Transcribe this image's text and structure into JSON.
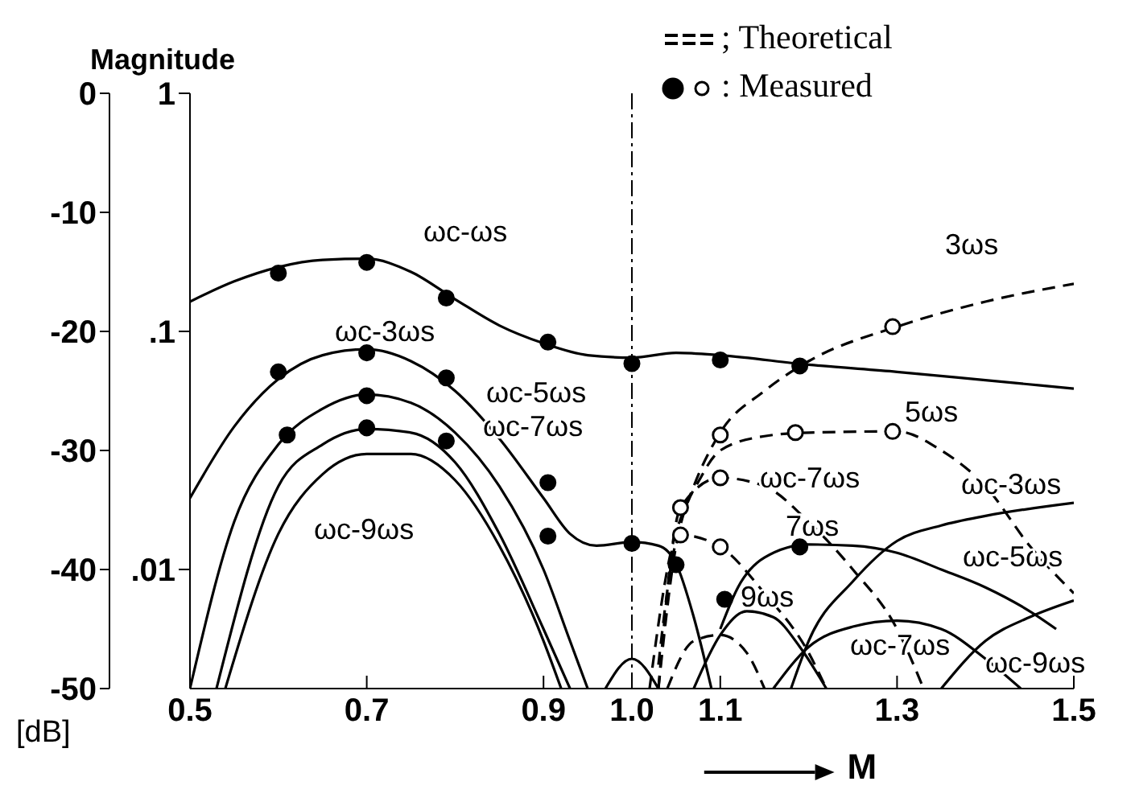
{
  "chart_data": {
    "type": "line",
    "xlabel": "M",
    "ylabel": "[dB]",
    "y2label": "Magnitude",
    "xlim": [
      0.5,
      1.5
    ],
    "xticks": [
      0.5,
      0.7,
      0.9,
      {
        "value": 1,
        "label": "1.0"
      },
      1.1,
      1.3,
      1.5
    ],
    "ylim": [
      -50,
      0
    ],
    "yticks": [
      0,
      -10,
      -20,
      -30,
      -40,
      -50
    ],
    "log": "y2",
    "y2lim": [
      0.00316,
      1
    ],
    "y2ticks": [
      1,
      {
        "value": 0.1,
        "label": ".1"
      },
      {
        "value": 0.01,
        "label": ".01"
      }
    ],
    "grid": false,
    "series": [
      {
        "type": "line",
        "color": "#000000",
        "line_style": "solid",
        "x": [
          0.5,
          0.55,
          0.6,
          0.65,
          0.7,
          0.75,
          0.8,
          0.85,
          0.9,
          0.95,
          1.0,
          1.05,
          1.1,
          1.2,
          1.3,
          1.4,
          1.5
        ],
        "values": [
          -17.5,
          -15.8,
          -14.6,
          -14,
          -13.9,
          -15,
          -17.3,
          -19.5,
          -21,
          -22,
          -22.2,
          -21.8,
          -22,
          -22.8,
          -23.4,
          -24.1,
          -24.8
        ]
      },
      {
        "type": "line",
        "color": "#000000",
        "line_style": "solid",
        "x": [
          0.5,
          0.55,
          0.6,
          0.65,
          0.7,
          0.75,
          0.8,
          0.85,
          0.9,
          0.93,
          0.96,
          1.0,
          1.03,
          1.05,
          1.07,
          1.09
        ],
        "values": [
          -34,
          -28,
          -24,
          -22,
          -21.5,
          -22.5,
          -25,
          -29,
          -34,
          -37,
          -38,
          -37.7,
          -38,
          -39.5,
          -44,
          -50
        ]
      },
      {
        "type": "line",
        "color": "#000000",
        "line_style": "solid",
        "x": [
          1.18,
          1.2,
          1.25,
          1.3,
          1.35,
          1.4,
          1.5
        ],
        "values": [
          -50,
          -46,
          -41,
          -37.6,
          -36.3,
          -35.5,
          -34.4
        ]
      },
      {
        "type": "line",
        "color": "#000000",
        "line_style": "solid",
        "x": [
          0.5,
          0.55,
          0.6,
          0.65,
          0.7,
          0.75,
          0.8,
          0.85,
          0.9,
          0.93,
          0.95
        ],
        "values": [
          -50,
          -36,
          -29.5,
          -26.5,
          -25.3,
          -26,
          -28.5,
          -33,
          -40,
          -46,
          -50
        ]
      },
      {
        "type": "line",
        "color": "#000000",
        "line_style": "solid",
        "x": [
          1.1,
          1.12,
          1.15,
          1.2,
          1.25,
          1.3,
          1.35,
          1.4,
          1.45,
          1.48
        ],
        "values": [
          -45,
          -41.5,
          -39,
          -37.9,
          -38,
          -38.6,
          -40,
          -41.5,
          -43.5,
          -45
        ]
      },
      {
        "type": "line",
        "color": "#000000",
        "line_style": "solid",
        "x": [
          0.53,
          0.6,
          0.65,
          0.7,
          0.75,
          0.8,
          0.85,
          0.9,
          0.93
        ],
        "values": [
          -50,
          -33,
          -29.5,
          -28.2,
          -28.5,
          -31,
          -37,
          -45,
          -50
        ]
      },
      {
        "type": "line",
        "color": "#000000",
        "line_style": "solid",
        "x": [
          1.16,
          1.2,
          1.25,
          1.3,
          1.35,
          1.4,
          1.44
        ],
        "values": [
          -50,
          -46.5,
          -44.8,
          -44.3,
          -45,
          -47.5,
          -50
        ]
      },
      {
        "type": "line",
        "color": "#000000",
        "line_style": "solid",
        "x": [
          0.54,
          0.6,
          0.65,
          0.7,
          0.75,
          0.8,
          0.85,
          0.9,
          0.92
        ],
        "values": [
          -50,
          -37,
          -32,
          -30.3,
          -30.3,
          -32.5,
          -38,
          -46,
          -50
        ]
      },
      {
        "type": "line",
        "color": "#000000",
        "line_style": "solid",
        "x": [
          1.35,
          1.4,
          1.45,
          1.5
        ],
        "values": [
          -50,
          -46,
          -44,
          -42.6
        ]
      },
      {
        "type": "line",
        "color": "#000000",
        "line_style": "solid",
        "x": [
          0.97,
          1.0,
          1.03
        ],
        "values": [
          -50,
          -47.5,
          -50
        ]
      },
      {
        "type": "line",
        "color": "#000000",
        "line_style": "solid",
        "x": [
          1.07,
          1.1,
          1.13,
          1.16,
          1.19,
          1.22
        ],
        "values": [
          -50,
          -45.5,
          -43.5,
          -44,
          -46.5,
          -50
        ]
      },
      {
        "type": "line",
        "color": "#000000",
        "line_style": "dashed",
        "x": [
          1.02,
          1.04,
          1.07,
          1.1,
          1.15,
          1.2,
          1.3,
          1.4,
          1.5
        ],
        "values": [
          -50,
          -40,
          -33,
          -28.5,
          -25,
          -22.5,
          -19.6,
          -17.5,
          -16
        ]
      },
      {
        "type": "line",
        "color": "#000000",
        "line_style": "dashed",
        "x": [
          1.03,
          1.05,
          1.08,
          1.1,
          1.15,
          1.2,
          1.3,
          1.35,
          1.4,
          1.45,
          1.5
        ],
        "values": [
          -50,
          -38,
          -32,
          -30,
          -28.8,
          -28.5,
          -28.4,
          -30,
          -33,
          -38,
          -42
        ]
      },
      {
        "type": "line",
        "color": "#000000",
        "line_style": "dashed",
        "x": [
          1.03,
          1.055,
          1.1,
          1.15,
          1.2,
          1.25,
          1.3,
          1.33
        ],
        "values": [
          -50,
          -34.8,
          -32.3,
          -33,
          -36,
          -40,
          -45,
          -50
        ]
      },
      {
        "type": "line",
        "color": "#000000",
        "line_style": "dashed",
        "x": [
          1.03,
          1.055,
          1.1,
          1.15,
          1.2,
          1.22
        ],
        "values": [
          -48,
          -37.1,
          -38.1,
          -42,
          -47,
          -50
        ]
      },
      {
        "type": "line",
        "color": "#000000",
        "line_style": "dashed",
        "x": [
          1.04,
          1.07,
          1.1,
          1.13,
          1.15
        ],
        "values": [
          -50,
          -46,
          -45.5,
          -47,
          -50
        ]
      },
      {
        "type": "scatter",
        "color": "#000000",
        "marker": "circle",
        "x": [
          0.6,
          0.7,
          0.79,
          0.905,
          1.0,
          1.1,
          1.19,
          0.6,
          0.7,
          0.79,
          0.905,
          0.61,
          0.7,
          0.7,
          0.79,
          0.905,
          1.0,
          1.05,
          1.105,
          1.19
        ],
        "values": [
          -15.1,
          -14.2,
          -17.2,
          -20.9,
          -22.7,
          -22.4,
          -22.9,
          -23.4,
          -21.8,
          -23.9,
          -32.7,
          -28.7,
          -25.4,
          -28.1,
          -29.2,
          -37.2,
          -37.8,
          -39.6,
          -42.5,
          -38.1
        ]
      },
      {
        "type": "scatter",
        "color": "#ffffff",
        "marker": "circle",
        "x": [
          1.295,
          1.1,
          1.185,
          1.295,
          1.1,
          1.055,
          1.055,
          1.1
        ],
        "values": [
          -19.6,
          -28.7,
          -28.5,
          -28.4,
          -32.3,
          -34.8,
          -37.1,
          -38.1
        ]
      }
    ],
    "ref_lines": [
      {
        "axis": "x",
        "value": 1,
        "line_style": "dashed",
        "color": "#000000"
      }
    ],
    "annotations": [
      "; Theoretical",
      ": Measured",
      "ωc-ωs",
      "ωc-3ωs",
      "ωc-5ωs",
      "ωc-7ωs",
      "ωc-9ωs",
      "3ωs",
      "5ωs",
      "ωc-7ωs",
      "ωc-3ωs",
      "7ωs",
      "ωc-5ωs",
      "9ωs",
      "ωc-7ωs",
      "ωc-9ωs"
    ]
  }
}
